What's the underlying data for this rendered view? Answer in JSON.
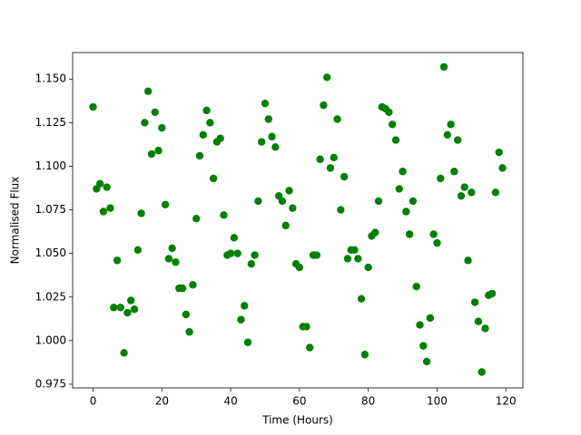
{
  "chart_data": {
    "type": "scatter",
    "xlabel": "Time (Hours)",
    "ylabel": "Normalised Flux",
    "color": "#008000",
    "x": [
      0,
      1,
      2,
      3,
      4,
      5,
      6,
      7,
      8,
      9,
      10,
      11,
      12,
      13,
      14,
      15,
      16,
      17,
      18,
      19,
      20,
      21,
      22,
      23,
      24,
      25,
      26,
      27,
      28,
      29,
      30,
      31,
      32,
      33,
      34,
      35,
      36,
      37,
      38,
      39,
      40,
      41,
      42,
      43,
      44,
      45,
      46,
      47,
      48,
      49,
      50,
      51,
      52,
      53,
      54,
      55,
      56,
      57,
      58,
      59,
      60,
      61,
      62,
      63,
      64,
      65,
      66,
      67,
      68,
      69,
      70,
      71,
      72,
      73,
      74,
      75,
      76,
      77,
      78,
      79,
      80,
      81,
      82,
      83,
      84,
      85,
      86,
      87,
      88,
      89,
      90,
      91,
      92,
      93,
      94,
      95,
      96,
      97,
      98,
      99,
      100,
      101,
      102,
      103,
      104,
      105,
      106,
      107,
      108,
      109,
      110,
      111,
      112,
      113,
      114,
      115,
      116,
      117,
      118,
      119
    ],
    "values": [
      1.134,
      1.087,
      1.09,
      1.074,
      1.088,
      1.076,
      1.019,
      1.046,
      1.019,
      0.993,
      1.016,
      1.023,
      1.018,
      1.052,
      1.073,
      1.125,
      1.143,
      1.107,
      1.131,
      1.109,
      1.122,
      1.078,
      1.047,
      1.053,
      1.045,
      1.03,
      1.03,
      1.015,
      1.005,
      1.032,
      1.07,
      1.106,
      1.118,
      1.132,
      1.125,
      1.093,
      1.114,
      1.116,
      1.072,
      1.049,
      1.05,
      1.059,
      1.05,
      1.012,
      1.02,
      0.999,
      1.044,
      1.049,
      1.08,
      1.114,
      1.136,
      1.127,
      1.117,
      1.111,
      1.083,
      1.08,
      1.066,
      1.086,
      1.076,
      1.044,
      1.042,
      1.008,
      1.008,
      0.996,
      1.049,
      1.049,
      1.104,
      1.135,
      1.151,
      1.099,
      1.105,
      1.127,
      1.075,
      1.094,
      1.047,
      1.052,
      1.052,
      1.047,
      1.024,
      0.992,
      1.042,
      1.06,
      1.062,
      1.08,
      1.134,
      1.133,
      1.131,
      1.124,
      1.115,
      1.087,
      1.097,
      1.074,
      1.061,
      1.08,
      1.031,
      1.009,
      0.997,
      0.988,
      1.013,
      1.061,
      1.056,
      1.093,
      1.157,
      1.118,
      1.124,
      1.097,
      1.115,
      1.083,
      1.088,
      1.046,
      1.085,
      1.022,
      1.011,
      0.982,
      1.007,
      1.026,
      1.027,
      1.085,
      1.108,
      1.099
    ],
    "xlim": [
      -5.95,
      124.95
    ],
    "ylim": [
      0.9729,
      1.1652
    ],
    "xticks": [
      0,
      20,
      40,
      60,
      80,
      100,
      120
    ],
    "yticks": [
      0.975,
      {
        "value": 1.0,
        "label": "1.000"
      },
      1.025,
      {
        "value": 1.05,
        "label": "1.050"
      },
      1.075,
      {
        "value": 1.1,
        "label": "1.100"
      },
      1.125,
      {
        "value": 1.15,
        "label": "1.150"
      }
    ]
  }
}
